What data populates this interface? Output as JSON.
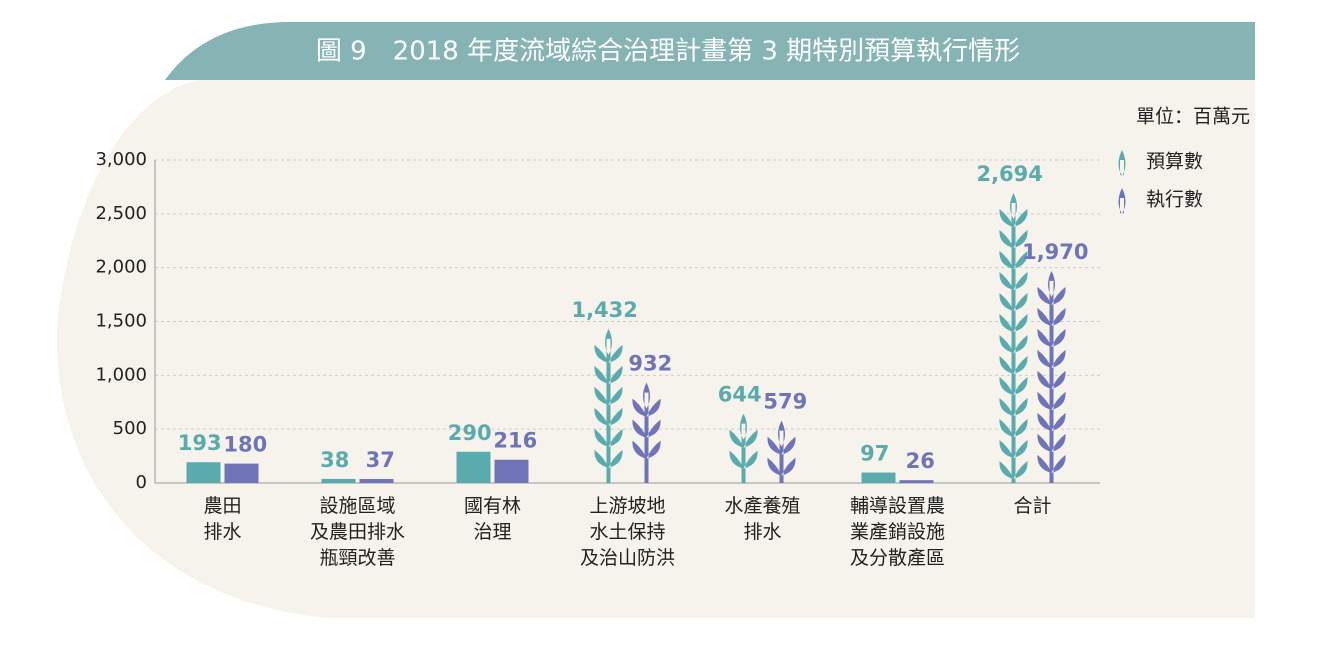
{
  "chart_data": {
    "type": "bar",
    "title": "圖 9　2018 年度流域綜合治理計畫第 3 期特別預算執行情形",
    "unit": "單位：百萬元",
    "categories": [
      "農田\n排水",
      "設施區域\n及農田排水\n瓶頸改善",
      "國有林\n治理",
      "上游坡地\n水土保持\n及治山防洪",
      "水產養殖\n排水",
      "輔導設置農\n業產銷設施\n及分散產區",
      "合計"
    ],
    "series": [
      {
        "name": "預算數",
        "color": "#5aabad",
        "values": [
          193,
          38,
          290,
          1432,
          644,
          97,
          2694
        ],
        "value_labels": [
          "193",
          "38",
          "290",
          "1,432",
          "644",
          "97",
          "2,694"
        ]
      },
      {
        "name": "執行數",
        "color": "#6f74b8",
        "values": [
          180,
          37,
          216,
          932,
          579,
          26,
          1970
        ],
        "value_labels": [
          "180",
          "37",
          "216",
          "932",
          "579",
          "26",
          "1,970"
        ]
      }
    ],
    "ylim": [
      0,
      3000
    ],
    "yticks": [
      0,
      500,
      {
        "value": 1000,
        "label": "1,000"
      },
      {
        "value": 1500,
        "label": "1,500"
      },
      {
        "value": 2000,
        "label": "2,000"
      },
      {
        "value": 2500,
        "label": "2,500"
      },
      {
        "value": 3000,
        "label": "3,000"
      }
    ],
    "grid": true
  }
}
